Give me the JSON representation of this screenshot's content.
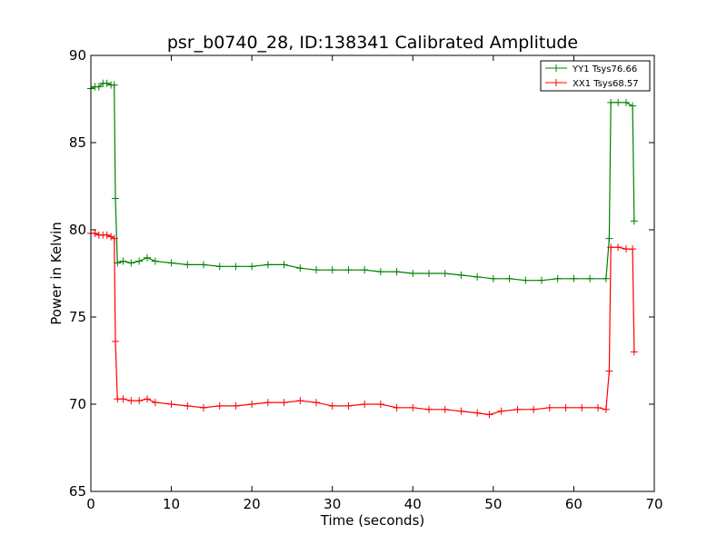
{
  "chart_data": {
    "type": "line",
    "title": "psr_b0740_28, ID:138341 Calibrated Amplitude",
    "xlabel": "Time (seconds)",
    "ylabel": "Power in Kelvin",
    "xlim": [
      0,
      70
    ],
    "ylim": [
      65,
      90
    ],
    "xticks": [
      0,
      10,
      20,
      30,
      40,
      50,
      60,
      70
    ],
    "yticks": [
      65,
      70,
      75,
      80,
      85,
      90
    ],
    "xtick_labels": [
      "0",
      "10",
      "20",
      "30",
      "40",
      "50",
      "60",
      "70"
    ],
    "ytick_labels": [
      "65",
      "70",
      "75",
      "80",
      "85",
      "90"
    ],
    "grid": false,
    "legend_position": "top-right",
    "marker": "+",
    "series": [
      {
        "name": "YY1 Tsys76.66",
        "color": "#008000",
        "x": [
          0,
          0.5,
          1.0,
          1.5,
          2.0,
          2.5,
          2.9,
          3.05,
          3.3,
          4.0,
          5.0,
          6.0,
          7.0,
          8.0,
          10.0,
          12.0,
          14.0,
          16.0,
          18.0,
          20.0,
          22.0,
          24.0,
          26.0,
          28.0,
          30.0,
          32.0,
          34.0,
          36.0,
          38.0,
          40.0,
          42.0,
          44.0,
          46.0,
          48.0,
          50.0,
          52.0,
          54.0,
          56.0,
          58.0,
          60.0,
          62.0,
          64.0,
          64.4,
          64.6,
          65.5,
          66.5,
          67.3,
          67.5
        ],
        "y": [
          88.1,
          88.2,
          88.2,
          88.4,
          88.4,
          88.3,
          88.3,
          81.8,
          78.1,
          78.2,
          78.1,
          78.2,
          78.4,
          78.2,
          78.1,
          78.0,
          78.0,
          77.9,
          77.9,
          77.9,
          78.0,
          78.0,
          77.8,
          77.7,
          77.7,
          77.7,
          77.7,
          77.6,
          77.6,
          77.5,
          77.5,
          77.5,
          77.4,
          77.3,
          77.2,
          77.2,
          77.1,
          77.1,
          77.2,
          77.2,
          77.2,
          77.2,
          79.5,
          87.3,
          87.3,
          87.3,
          87.1,
          80.5
        ]
      },
      {
        "name": "XX1 Tsys68.57",
        "color": "#ff0000",
        "x": [
          0,
          0.5,
          1.0,
          1.5,
          2.0,
          2.5,
          2.9,
          3.05,
          3.3,
          4.0,
          5.0,
          6.0,
          7.0,
          8.0,
          10.0,
          12.0,
          14.0,
          16.0,
          18.0,
          20.0,
          22.0,
          24.0,
          26.0,
          28.0,
          30.0,
          32.0,
          34.0,
          36.0,
          38.0,
          40.0,
          42.0,
          44.0,
          46.0,
          48.0,
          49.5,
          51.0,
          53.0,
          55.0,
          57.0,
          59.0,
          61.0,
          63.0,
          64.0,
          64.4,
          64.6,
          65.5,
          66.5,
          67.3,
          67.5
        ],
        "y": [
          79.8,
          79.8,
          79.7,
          79.7,
          79.7,
          79.6,
          79.5,
          73.6,
          70.3,
          70.3,
          70.2,
          70.2,
          70.3,
          70.1,
          70.0,
          69.9,
          69.8,
          69.9,
          69.9,
          70.0,
          70.1,
          70.1,
          70.2,
          70.1,
          69.9,
          69.9,
          70.0,
          70.0,
          69.8,
          69.8,
          69.7,
          69.7,
          69.6,
          69.5,
          69.4,
          69.6,
          69.7,
          69.7,
          69.8,
          69.8,
          69.8,
          69.8,
          69.7,
          71.9,
          79.0,
          79.0,
          78.9,
          78.9,
          73.0
        ]
      }
    ]
  }
}
